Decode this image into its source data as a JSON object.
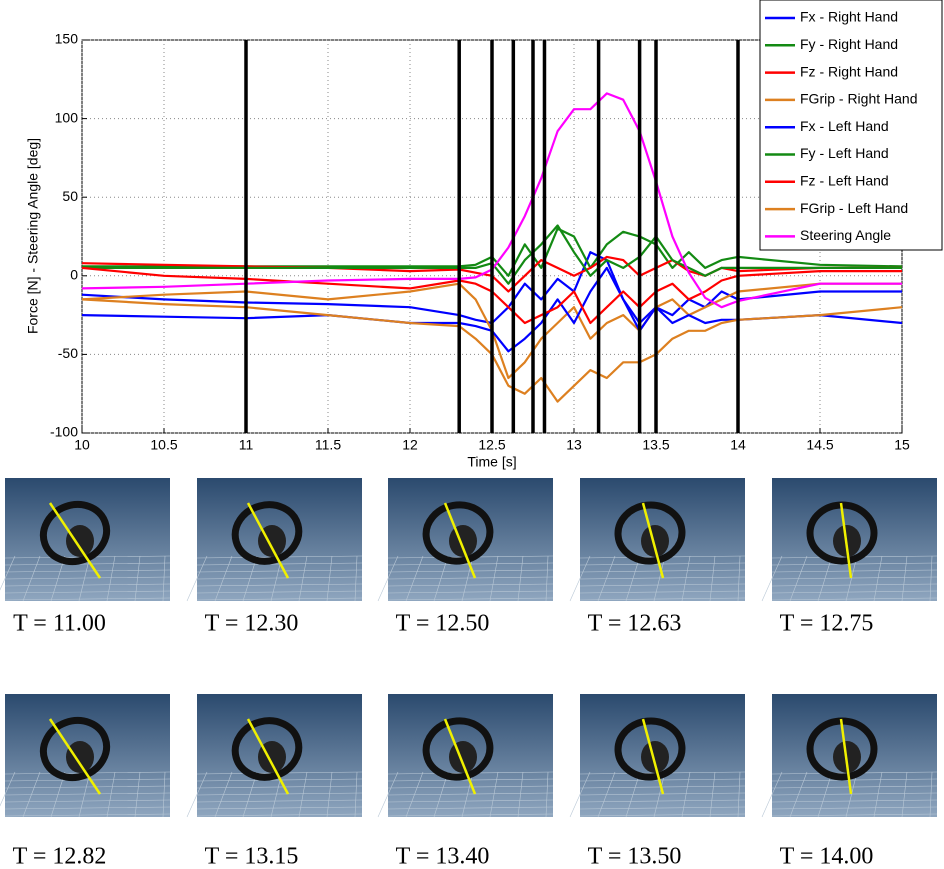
{
  "chart_data": {
    "type": "line",
    "xlabel": "Time [s]",
    "ylabel": "Force [N] - Steering Angle [deg]",
    "x": [
      10,
      10.5,
      11,
      11.5,
      12,
      12.3,
      12.4,
      12.5,
      12.6,
      12.7,
      12.8,
      12.9,
      13.0,
      13.1,
      13.2,
      13.3,
      13.4,
      13.5,
      13.6,
      13.7,
      13.8,
      13.9,
      14.0,
      14.5,
      15
    ],
    "series": [
      {
        "name": "Fx - Right Hand",
        "color": "#0000ff",
        "values": [
          -12,
          -15,
          -17,
          -18,
          -20,
          -25,
          -28,
          -30,
          -20,
          -5,
          -15,
          -2,
          -10,
          15,
          10,
          -15,
          -30,
          -20,
          -25,
          -15,
          -20,
          -10,
          -15,
          -10,
          -10
        ]
      },
      {
        "name": "Fy - Right Hand",
        "color": "#138a13",
        "values": [
          6,
          6,
          6,
          6,
          6,
          6,
          7,
          12,
          0,
          20,
          5,
          30,
          25,
          5,
          20,
          28,
          25,
          20,
          5,
          15,
          5,
          10,
          12,
          7,
          6
        ]
      },
      {
        "name": "Fz - Right Hand",
        "color": "#ff0000",
        "values": [
          8,
          7,
          6,
          5,
          3,
          4,
          2,
          0,
          -10,
          0,
          10,
          5,
          0,
          5,
          12,
          10,
          0,
          5,
          10,
          3,
          0,
          5,
          3,
          5,
          5
        ]
      },
      {
        "name": "FGrip - Right Hand",
        "color": "#dd8020",
        "values": [
          -15,
          -12,
          -10,
          -15,
          -10,
          -5,
          -15,
          -35,
          -65,
          -55,
          -40,
          -30,
          -20,
          -40,
          -30,
          -25,
          -35,
          -20,
          -15,
          -25,
          -20,
          -15,
          -10,
          -5,
          -5
        ]
      },
      {
        "name": "Fx - Left Hand",
        "color": "#0000ff",
        "values": [
          -25,
          -26,
          -27,
          -25,
          -30,
          -30,
          -32,
          -35,
          -48,
          -40,
          -30,
          -15,
          -30,
          -10,
          5,
          -15,
          -35,
          -20,
          -30,
          -25,
          -30,
          -28,
          -28,
          -25,
          -30
        ]
      },
      {
        "name": "Fy - Left Hand",
        "color": "#138a13",
        "values": [
          5,
          5,
          5,
          5,
          5,
          5,
          5,
          8,
          -5,
          10,
          20,
          32,
          15,
          0,
          10,
          5,
          12,
          25,
          10,
          5,
          0,
          5,
          5,
          5,
          5
        ]
      },
      {
        "name": "Fz - Left Hand",
        "color": "#ff0000",
        "values": [
          5,
          0,
          -2,
          -5,
          -8,
          -3,
          -5,
          -10,
          -20,
          -30,
          -25,
          -20,
          -10,
          -30,
          -20,
          -10,
          -20,
          -10,
          -5,
          -15,
          -10,
          -3,
          0,
          3,
          3
        ]
      },
      {
        "name": "FGrip - Left Hand",
        "color": "#dd8020",
        "values": [
          -15,
          -18,
          -20,
          -25,
          -30,
          -32,
          -40,
          -50,
          -70,
          -75,
          -65,
          -80,
          -70,
          -60,
          -65,
          -55,
          -55,
          -50,
          -40,
          -35,
          -35,
          -30,
          -28,
          -25,
          -20
        ]
      },
      {
        "name": "Steering Angle",
        "color": "#ff00ff",
        "values": [
          -8,
          -7,
          -5,
          -3,
          -2,
          -2,
          -1,
          4,
          18,
          38,
          62,
          92,
          106,
          106,
          116,
          112,
          92,
          60,
          25,
          2,
          -14,
          -20,
          -16,
          -5,
          -5
        ]
      }
    ],
    "xlim": [
      10,
      15
    ],
    "xticks": [
      10,
      10.5,
      11,
      11.5,
      12,
      12.5,
      13,
      13.5,
      14,
      14.5,
      15
    ],
    "ylim": [
      -100,
      150
    ],
    "yticks": [
      -100,
      -50,
      0,
      50,
      100,
      150
    ],
    "grid": true,
    "legend": "upper right",
    "vlines": [
      11,
      12.3,
      12.5,
      12.63,
      12.75,
      12.82,
      13.15,
      13.4,
      13.5,
      14
    ]
  },
  "snapshots": [
    "T = 11.00",
    "T = 12.30",
    "T = 12.50",
    "T = 12.63",
    "T = 12.75",
    "T = 12.82",
    "T = 13.15",
    "T = 13.40",
    "T = 13.50",
    "T = 14.00"
  ]
}
